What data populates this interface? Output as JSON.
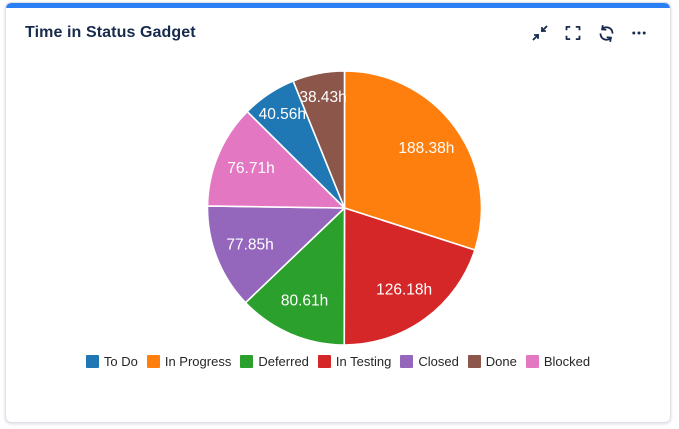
{
  "card": {
    "title": "Time in Status Gadget",
    "accent_color": "#2b7ff5",
    "toolbar": {
      "icon_color": "#172b4d",
      "icons": [
        "collapse-arrows",
        "fullscreen-brackets",
        "refresh",
        "ellipsis"
      ]
    }
  },
  "chart_data": {
    "type": "pie",
    "title": "",
    "unit": "h",
    "legend_position": "bottom",
    "slice_order": "descending-clockwise-from-top",
    "label_color": "#ffffff",
    "slices": [
      {
        "label": "To Do",
        "value": 40.56,
        "data_label": "40.56h",
        "color": "#1f77b4"
      },
      {
        "label": "In Progress",
        "value": 188.38,
        "data_label": "188.38h",
        "color": "#ff7f0e"
      },
      {
        "label": "Deferred",
        "value": 80.61,
        "data_label": "80.61h",
        "color": "#2ca02c"
      },
      {
        "label": "In Testing",
        "value": 126.18,
        "data_label": "126.18h",
        "color": "#d62728"
      },
      {
        "label": "Closed",
        "value": 77.85,
        "data_label": "77.85h",
        "color": "#9467bd"
      },
      {
        "label": "Done",
        "value": 38.43,
        "data_label": "38.43h",
        "color": "#8c564b"
      },
      {
        "label": "Blocked",
        "value": 76.71,
        "data_label": "76.71h",
        "color": "#e377c2"
      }
    ]
  }
}
